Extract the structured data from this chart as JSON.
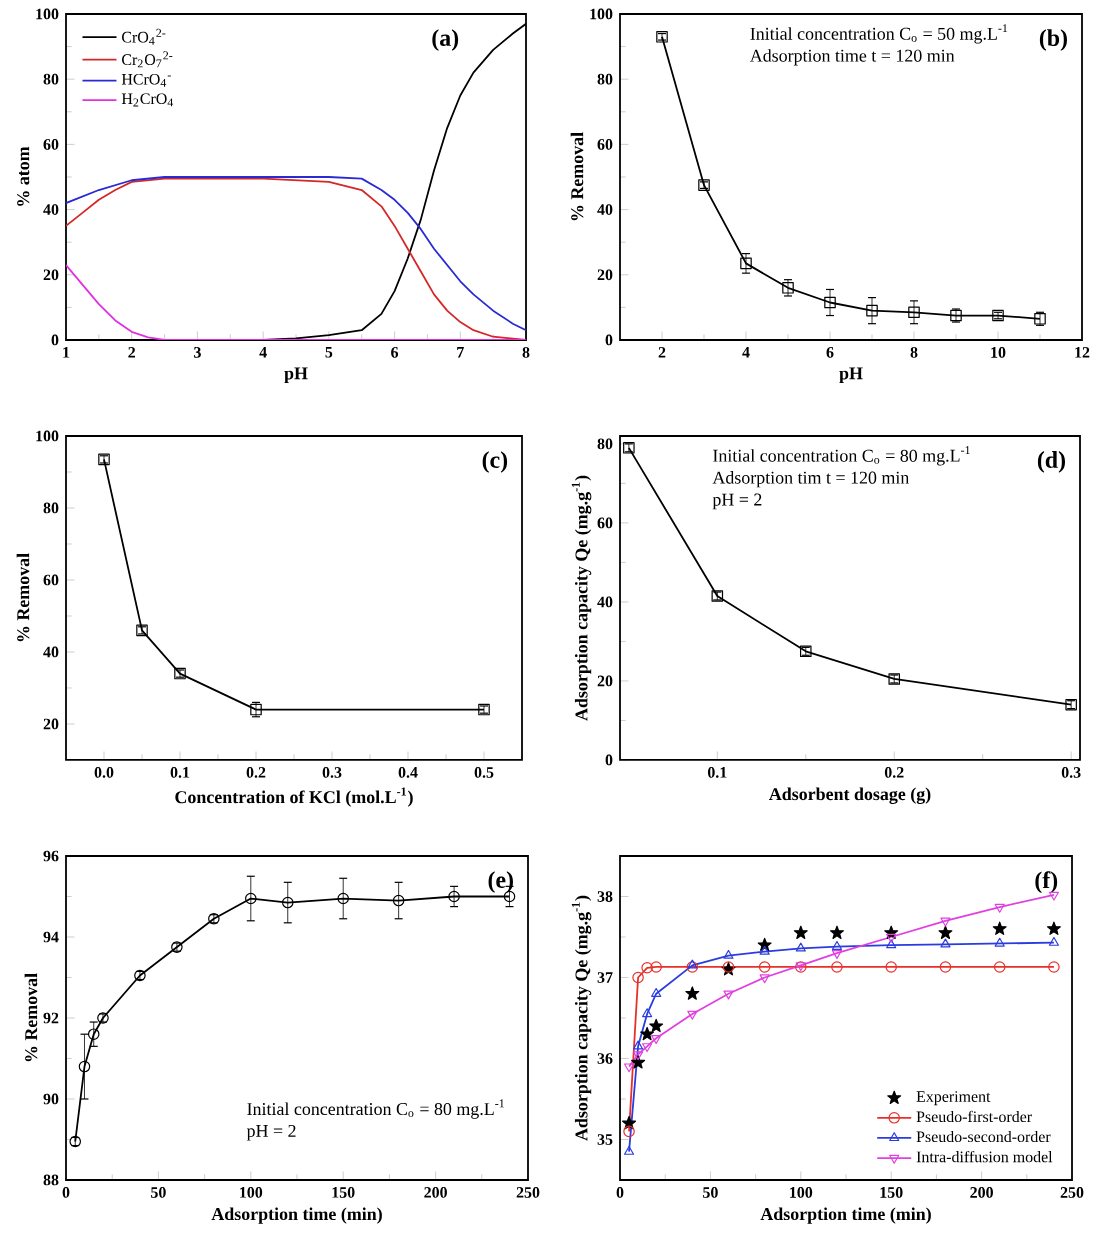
{
  "chart_data": [
    {
      "type": "line",
      "title": "(a)",
      "xlabel": "pH",
      "ylabel": "% atom",
      "xlim": [
        1,
        8
      ],
      "ylim": [
        0,
        100
      ],
      "xticks": [
        1,
        2,
        3,
        4,
        5,
        6,
        7,
        8
      ],
      "yticks": [
        0,
        20,
        40,
        60,
        80,
        100
      ],
      "legend": "top left",
      "grid": false,
      "series": [
        {
          "name": "CrO$_{4}$$^{2-}$",
          "color": "#000000",
          "x": [
            1,
            2,
            3,
            4,
            4.5,
            5,
            5.5,
            5.8,
            6,
            6.2,
            6.4,
            6.6,
            6.8,
            7,
            7.2,
            7.5,
            7.8,
            8
          ],
          "values": [
            0,
            0,
            0,
            0,
            0.5,
            1.5,
            3,
            8,
            15,
            25,
            37,
            52,
            65,
            75,
            82,
            89,
            94,
            97
          ]
        },
        {
          "name": "Cr$_{2}$O$_{7}$$^{2-}$",
          "color": "#d62728",
          "x": [
            1,
            1.25,
            1.5,
            1.75,
            2,
            2.5,
            3,
            4,
            5,
            5.5,
            5.8,
            6,
            6.2,
            6.4,
            6.6,
            6.8,
            7,
            7.2,
            7.5,
            8
          ],
          "values": [
            35,
            39,
            43,
            46,
            48.5,
            49.5,
            49.5,
            49.5,
            48.5,
            46,
            41,
            35,
            28,
            21,
            14,
            9,
            5.5,
            3,
            1,
            0
          ]
        },
        {
          "name": "HCrO$_{4}$$^{-}$",
          "color": "#2a2ad4",
          "x": [
            1,
            1.5,
            2,
            2.5,
            3,
            4,
            5,
            5.5,
            5.8,
            6,
            6.2,
            6.4,
            6.6,
            6.8,
            7,
            7.2,
            7.5,
            7.8,
            8
          ],
          "values": [
            42,
            46,
            49,
            50,
            50,
            50,
            50,
            49.5,
            46,
            43,
            39,
            34,
            28,
            23,
            18,
            14,
            9,
            5,
            3
          ]
        },
        {
          "name": "H$_{2}$CrO$_{4}$",
          "color": "#e030e0",
          "x": [
            1,
            1.25,
            1.5,
            1.75,
            2,
            2.25,
            2.5,
            3,
            4,
            5,
            6,
            7,
            8
          ],
          "values": [
            23,
            17,
            11,
            6,
            2.5,
            0.8,
            0,
            0,
            0,
            0,
            0,
            0,
            0
          ]
        }
      ]
    },
    {
      "type": "line",
      "title": "(b)",
      "xlabel": "pH",
      "ylabel": "% Removal",
      "xlim": [
        1,
        12
      ],
      "ylim": [
        0,
        100
      ],
      "xticks": [
        2,
        4,
        6,
        8,
        10,
        12
      ],
      "yticks": [
        0,
        20,
        40,
        60,
        80,
        100
      ],
      "marker": "square",
      "color": "#000000",
      "grid": false,
      "annotations": [
        "Initial concentration C$_{o}$ = 50 mg.L$^{-1}$",
        "Adsorption time t = 120 min"
      ],
      "x": [
        2,
        3,
        4,
        5,
        6,
        7,
        8,
        9,
        10,
        11
      ],
      "values": [
        93,
        47.5,
        23.5,
        16,
        11.5,
        9,
        8.5,
        7.5,
        7.5,
        6.5
      ],
      "errors": [
        1,
        1,
        3,
        2.5,
        4,
        4,
        3.5,
        2,
        1,
        2
      ]
    },
    {
      "type": "line",
      "title": "(c)",
      "xlabel": "Concentration of KCl (mol.L$^{-1}$)",
      "ylabel": "% Removal",
      "xlim": [
        -0.05,
        0.55
      ],
      "ylim": [
        10,
        100
      ],
      "xticks": [
        {
          "value": 0,
          "label": "0.0"
        },
        0.1,
        0.2,
        0.3,
        0.4,
        0.5
      ],
      "yticks": [
        20,
        40,
        60,
        80,
        100
      ],
      "marker": "square",
      "color": "#000000",
      "grid": false,
      "x": [
        0,
        0.05,
        0.1,
        0.2,
        0.5
      ],
      "values": [
        93.5,
        46,
        34,
        24,
        24
      ],
      "errors": [
        1,
        1,
        1,
        2,
        1
      ]
    },
    {
      "type": "line",
      "title": "(d)",
      "xlabel": "Adsorbent dosage (g)",
      "ylabel": "Adsorption capacity Qe (mg.g$^{-1}$)",
      "xlim": [
        0.045,
        0.305
      ],
      "ylim": [
        0,
        82
      ],
      "xticks": [
        0.1,
        0.2,
        0.3
      ],
      "yticks": [
        0,
        20,
        40,
        60,
        80
      ],
      "marker": "square",
      "color": "#000000",
      "grid": false,
      "annotations": [
        "Initial concentration C$_{o}$ = 80 mg.L$^{-1}$",
        "Adsorption tim t = 120 min",
        "pH = 2"
      ],
      "x": [
        0.05,
        0.1,
        0.15,
        0.2,
        0.3
      ],
      "values": [
        79,
        41.5,
        27.5,
        20.5,
        14
      ],
      "errors": [
        1,
        1,
        1,
        1,
        1
      ]
    },
    {
      "type": "line",
      "title": "(e)",
      "xlabel": "Adsorption time (min)",
      "ylabel": "% Removal",
      "xlim": [
        0,
        250
      ],
      "ylim": [
        88,
        96
      ],
      "xticks": [
        0,
        50,
        100,
        150,
        200,
        250
      ],
      "yticks": [
        88,
        90,
        92,
        94,
        96
      ],
      "marker": "circle",
      "color": "#000000",
      "grid": false,
      "annotations": [
        "Initial concentration C$_{o}$ = 80 mg.L$^{-1}$",
        "pH = 2"
      ],
      "x": [
        5,
        10,
        15,
        20,
        40,
        60,
        80,
        100,
        120,
        150,
        180,
        210,
        240
      ],
      "values": [
        88.95,
        90.8,
        91.6,
        92.0,
        93.05,
        93.75,
        94.45,
        94.95,
        94.85,
        94.95,
        94.9,
        95.0,
        95.0
      ],
      "errors": [
        0.1,
        0.8,
        0.3,
        0.1,
        0.1,
        0.1,
        0.1,
        0.55,
        0.5,
        0.5,
        0.45,
        0.25,
        0.25
      ]
    },
    {
      "type": "line",
      "title": "(f)",
      "xlabel": "Adsorption time (min)",
      "ylabel": "Adsorption capacity Qe (mg.g$^{-1}$)",
      "xlim": [
        0,
        250
      ],
      "ylim": [
        34.5,
        38.5
      ],
      "xticks": [
        0,
        50,
        100,
        150,
        200,
        250
      ],
      "yticks": [
        35,
        36,
        37,
        38
      ],
      "legend": "bottom right",
      "grid": false,
      "series": [
        {
          "name": "Experiment",
          "type": "scatter",
          "marker": "star",
          "color": "#000000",
          "x": [
            5,
            10,
            15,
            20,
            40,
            60,
            80,
            100,
            120,
            150,
            180,
            210,
            240
          ],
          "values": [
            35.2,
            35.95,
            36.3,
            36.4,
            36.8,
            37.1,
            37.4,
            37.55,
            37.55,
            37.55,
            37.55,
            37.6,
            37.6
          ]
        },
        {
          "name": "Pseudo-first-order",
          "marker": "circle",
          "color": "#e8302a",
          "x": [
            5,
            10,
            15,
            20,
            40,
            60,
            80,
            100,
            120,
            150,
            180,
            210,
            240
          ],
          "values": [
            35.1,
            37.0,
            37.12,
            37.13,
            37.13,
            37.13,
            37.13,
            37.13,
            37.13,
            37.13,
            37.13,
            37.13,
            37.13
          ]
        },
        {
          "name": "Pseudo-second-order",
          "marker": "triangle",
          "color": "#2a3ce0",
          "x": [
            5,
            10,
            15,
            20,
            40,
            60,
            80,
            100,
            120,
            150,
            180,
            210,
            240
          ],
          "values": [
            34.85,
            36.15,
            36.55,
            36.8,
            37.15,
            37.27,
            37.32,
            37.36,
            37.38,
            37.4,
            37.41,
            37.42,
            37.43
          ]
        },
        {
          "name": "Intra-diffusion model",
          "marker": "triangle-down",
          "color": "#e040e0",
          "x": [
            5,
            10,
            15,
            20,
            40,
            60,
            80,
            100,
            120,
            150,
            180,
            210,
            240
          ],
          "values": [
            35.9,
            36.05,
            36.15,
            36.25,
            36.55,
            36.8,
            37.0,
            37.15,
            37.3,
            37.5,
            37.7,
            37.87,
            38.02
          ]
        }
      ]
    }
  ]
}
